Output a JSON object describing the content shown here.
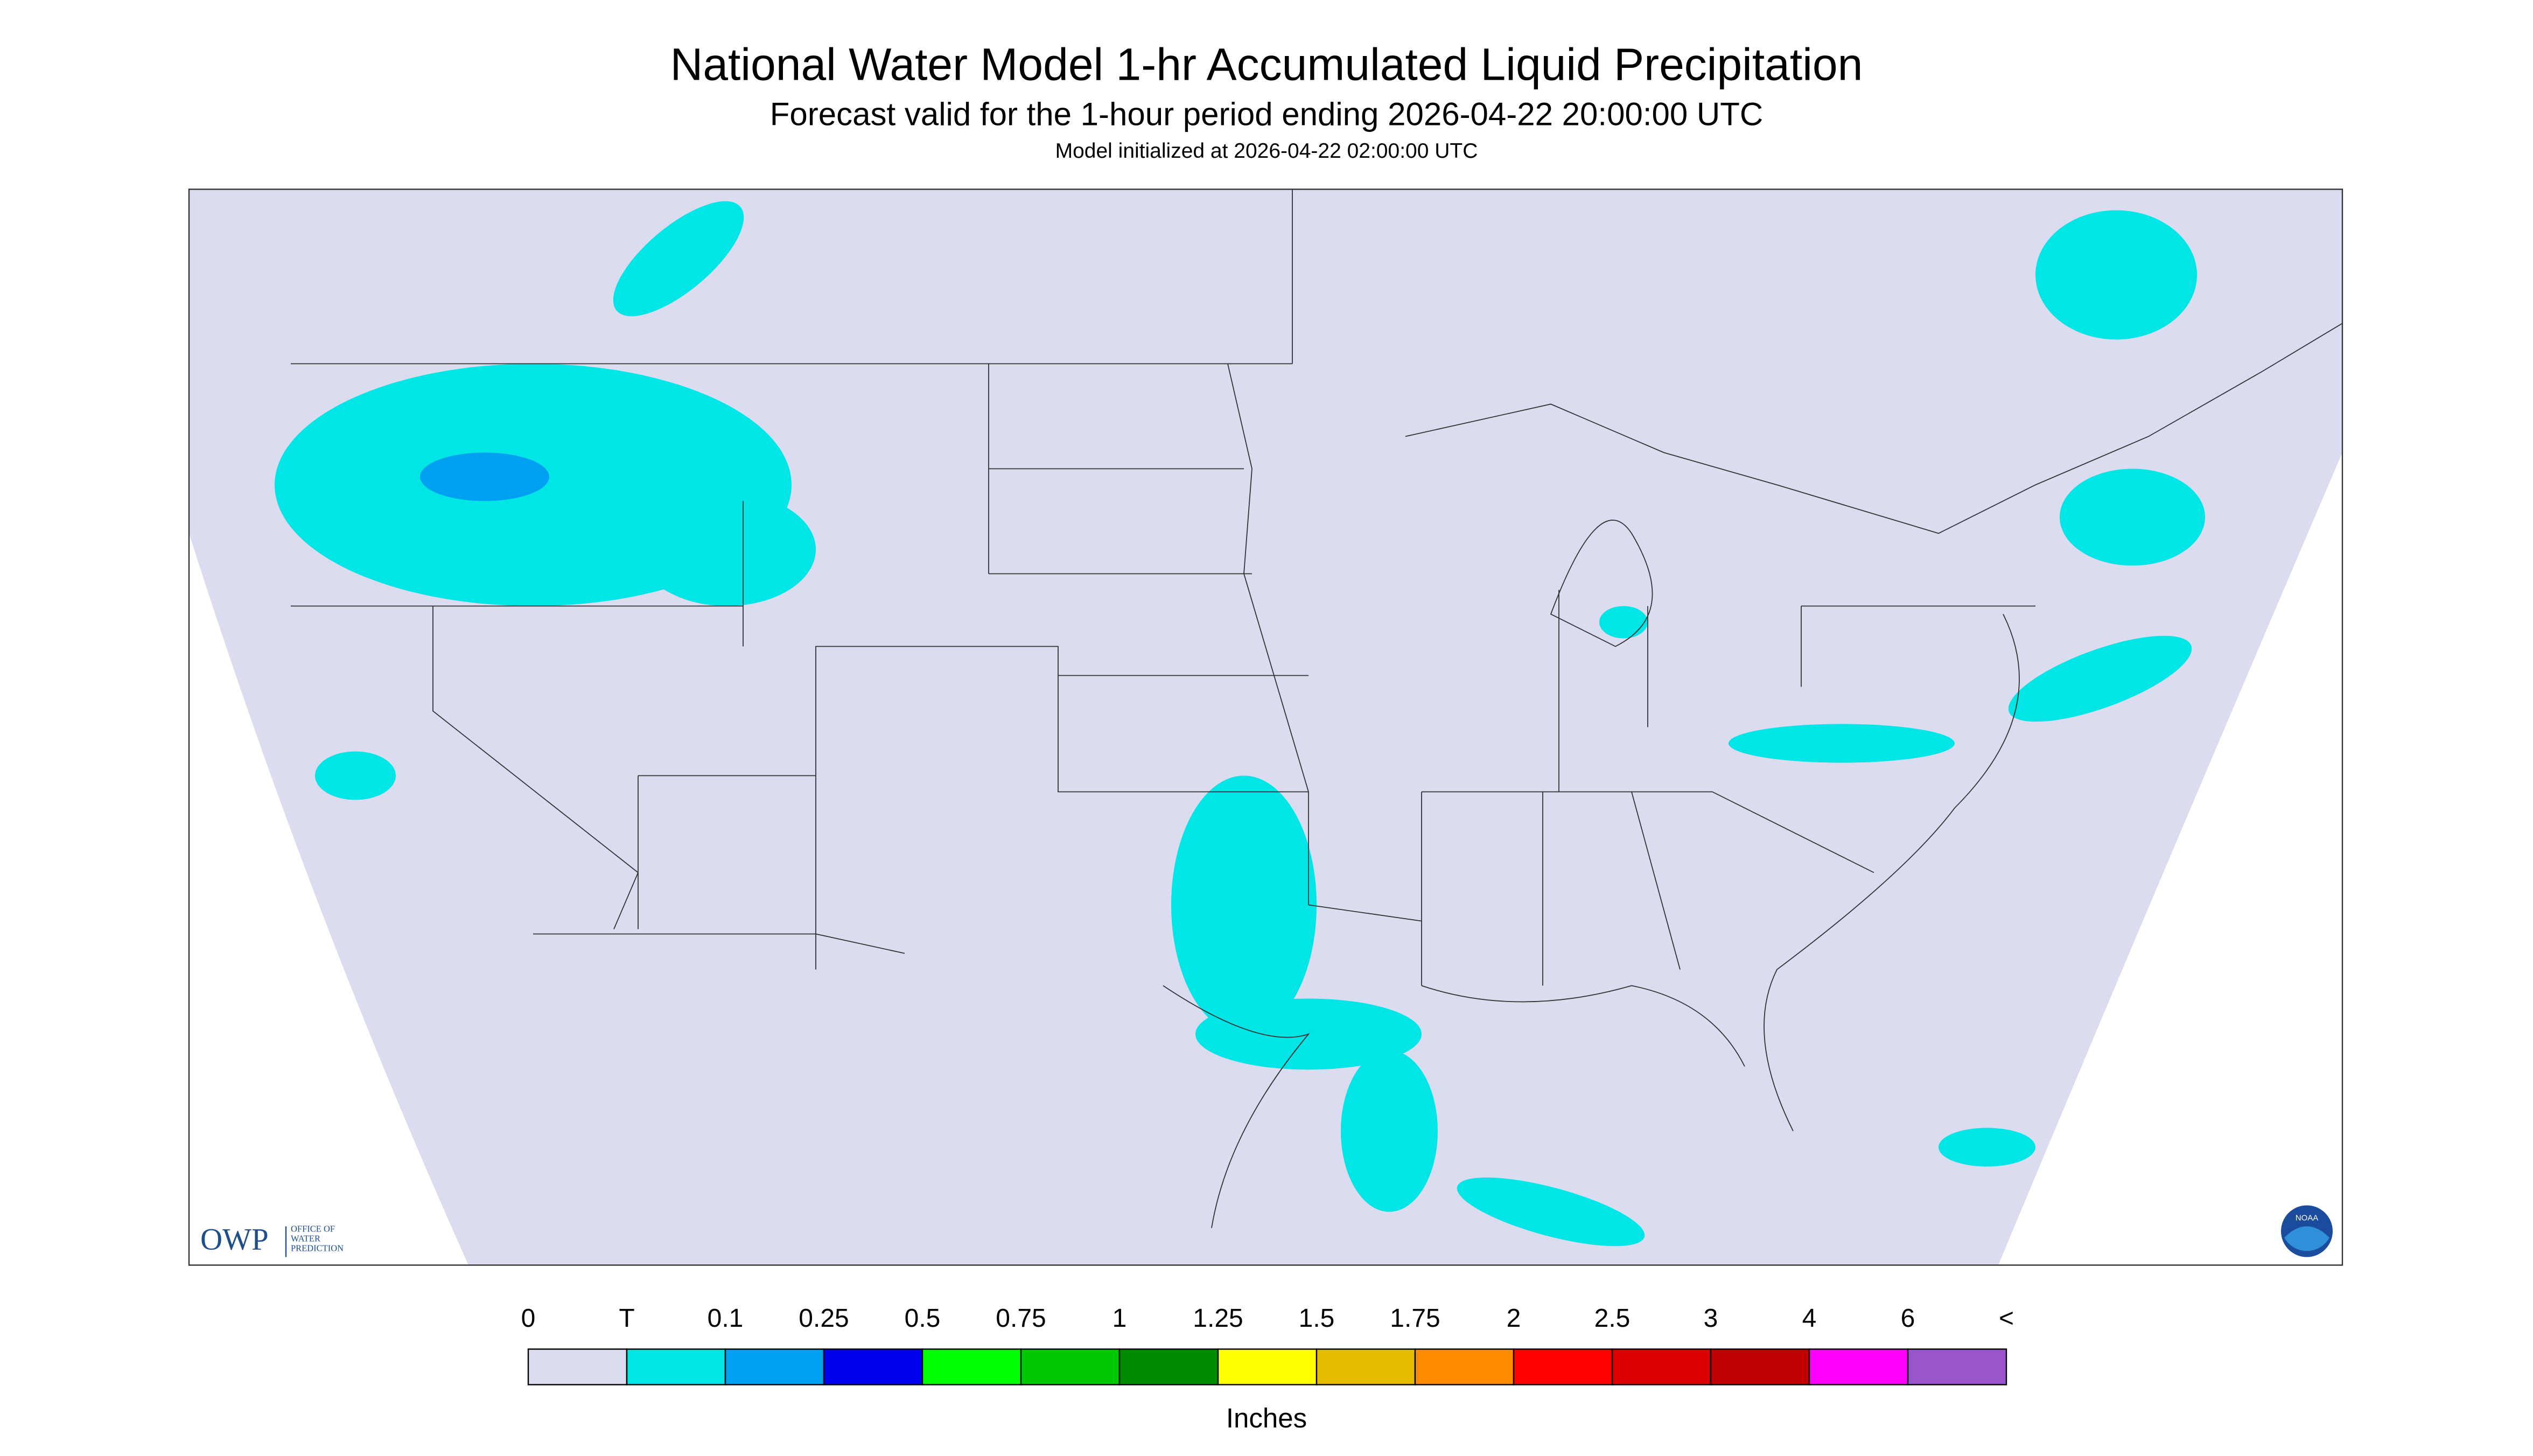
{
  "header": {
    "title": "National Water Model 1-hr Accumulated Liquid Precipitation",
    "subtitle": "Forecast valid for the 1-hour period ending 2026-04-22 20:00:00 UTC",
    "init": "Model initialized at 2026-04-22 02:00:00 UTC"
  },
  "legend": {
    "labels": [
      "0",
      "T",
      "0.1",
      "0.25",
      "0.5",
      "0.75",
      "1",
      "1.25",
      "1.5",
      "1.75",
      "2",
      "2.5",
      "3",
      "4",
      "6",
      "<"
    ],
    "colors": [
      "#dcdcf0",
      "#00e5e5",
      "#00a0f0",
      "#0000f0",
      "#00ff00",
      "#00c800",
      "#008c00",
      "#ffff00",
      "#e6be00",
      "#ff8c00",
      "#ff0000",
      "#dc0000",
      "#be0000",
      "#ff00ff",
      "#9955cc"
    ],
    "unit": "Inches"
  },
  "logos": {
    "owp": "OWP",
    "owp_name": [
      "OFFICE OF",
      "WATER",
      "PREDICTION"
    ],
    "noaa": "NOAA"
  }
}
